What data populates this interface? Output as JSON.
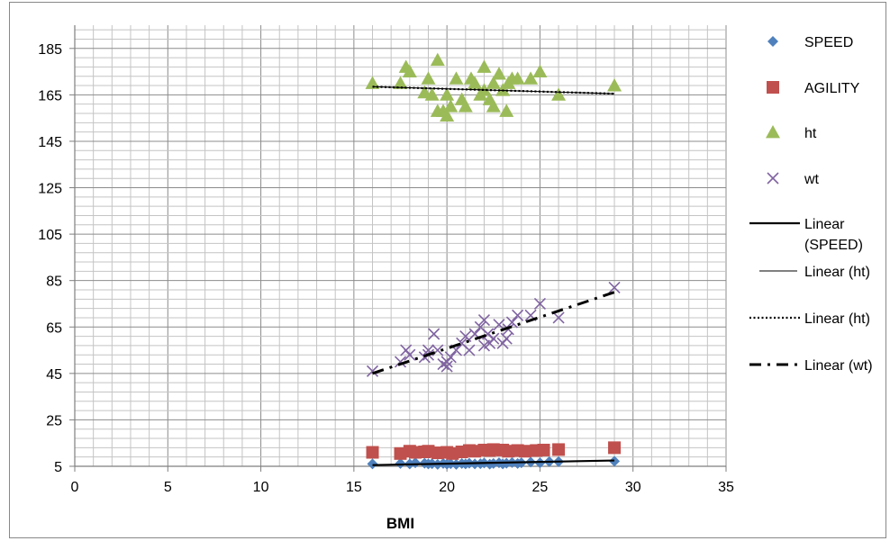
{
  "chart_data": {
    "type": "scatter",
    "title": "",
    "xlabel": "BMI",
    "ylabel": "",
    "xlim": [
      0,
      35
    ],
    "ylim": [
      5,
      195
    ],
    "x_ticks": [
      "0",
      "5",
      "10",
      "15",
      "20",
      "25",
      "30",
      "35"
    ],
    "y_ticks": [
      "5",
      "25",
      "45",
      "65",
      "85",
      "105",
      "125",
      "145",
      "165",
      "185"
    ],
    "grid": true,
    "legend_position": "right",
    "series": [
      {
        "name": "SPEED",
        "marker": "diamond",
        "color": "#4F81BD",
        "points": [
          [
            16,
            6
          ],
          [
            17.5,
            6.2
          ],
          [
            18,
            6
          ],
          [
            18.3,
            6.5
          ],
          [
            18.8,
            6.3
          ],
          [
            19,
            6
          ],
          [
            19.2,
            6.1
          ],
          [
            19.5,
            5.8
          ],
          [
            19.8,
            6.2
          ],
          [
            20,
            5.9
          ],
          [
            20.2,
            6.1
          ],
          [
            20.5,
            5.8
          ],
          [
            20.8,
            6.2
          ],
          [
            21,
            6
          ],
          [
            21.2,
            6.3
          ],
          [
            21.5,
            6
          ],
          [
            21.8,
            6.1
          ],
          [
            22,
            6.4
          ],
          [
            22.3,
            5.9
          ],
          [
            22.5,
            6.2
          ],
          [
            22.8,
            6.5
          ],
          [
            23,
            6
          ],
          [
            23.2,
            6.3
          ],
          [
            23.5,
            6.6
          ],
          [
            23.8,
            6.2
          ],
          [
            24,
            6.5
          ],
          [
            24.5,
            6.8
          ],
          [
            25,
            6.5
          ],
          [
            25.5,
            7
          ],
          [
            26,
            7
          ],
          [
            29,
            7.2
          ]
        ]
      },
      {
        "name": "AGILITY",
        "marker": "square",
        "color": "#C0504D",
        "points": [
          [
            16,
            11
          ],
          [
            17.5,
            10.5
          ],
          [
            18,
            11.5
          ],
          [
            18.3,
            11
          ],
          [
            18.8,
            11.2
          ],
          [
            19,
            11.5
          ],
          [
            19.5,
            10.8
          ],
          [
            20,
            11
          ],
          [
            20.3,
            10.5
          ],
          [
            20.8,
            11.2
          ],
          [
            21.2,
            11.8
          ],
          [
            21.5,
            11.5
          ],
          [
            22,
            12
          ],
          [
            22.3,
            11.8
          ],
          [
            22.5,
            12.2
          ],
          [
            23,
            12
          ],
          [
            23.3,
            11.5
          ],
          [
            23.8,
            11.8
          ],
          [
            24.2,
            11.5
          ],
          [
            24.8,
            11.8
          ],
          [
            25.2,
            12
          ],
          [
            26,
            12.2
          ],
          [
            29,
            13
          ]
        ]
      },
      {
        "name": "ht",
        "marker": "triangle",
        "color": "#9BBB59",
        "points": [
          [
            16,
            170
          ],
          [
            17.5,
            170
          ],
          [
            17.8,
            177
          ],
          [
            18,
            175
          ],
          [
            18.8,
            166
          ],
          [
            19,
            172
          ],
          [
            19.2,
            165
          ],
          [
            19.5,
            180
          ],
          [
            19.5,
            158
          ],
          [
            19.8,
            158
          ],
          [
            20,
            165
          ],
          [
            20,
            156
          ],
          [
            20.2,
            160
          ],
          [
            20.5,
            172
          ],
          [
            20.8,
            163
          ],
          [
            21,
            160
          ],
          [
            21.3,
            172
          ],
          [
            21.5,
            170
          ],
          [
            21.8,
            165
          ],
          [
            22,
            177
          ],
          [
            22,
            167
          ],
          [
            22.3,
            163
          ],
          [
            22.5,
            160
          ],
          [
            22.5,
            170
          ],
          [
            22.8,
            174
          ],
          [
            23,
            167
          ],
          [
            23.2,
            158
          ],
          [
            23.3,
            170
          ],
          [
            23.5,
            172
          ],
          [
            23.8,
            172
          ],
          [
            24.5,
            172
          ],
          [
            25,
            175
          ],
          [
            26,
            165
          ],
          [
            29,
            169
          ]
        ]
      },
      {
        "name": "wt",
        "marker": "x",
        "color": "#8064A2",
        "points": [
          [
            16,
            46
          ],
          [
            17.5,
            50
          ],
          [
            17.8,
            55
          ],
          [
            18,
            53
          ],
          [
            18.8,
            52
          ],
          [
            19,
            55
          ],
          [
            19,
            53
          ],
          [
            19.3,
            62
          ],
          [
            19.5,
            55
          ],
          [
            19.8,
            49
          ],
          [
            20,
            50
          ],
          [
            20,
            48
          ],
          [
            20.2,
            52
          ],
          [
            20.5,
            55
          ],
          [
            20.8,
            58
          ],
          [
            21,
            61
          ],
          [
            21.2,
            55
          ],
          [
            21.5,
            62
          ],
          [
            21.8,
            65
          ],
          [
            22,
            68
          ],
          [
            22,
            57
          ],
          [
            22.2,
            62
          ],
          [
            22.3,
            58
          ],
          [
            22.5,
            60
          ],
          [
            22.8,
            66
          ],
          [
            23,
            58
          ],
          [
            23.2,
            60
          ],
          [
            23.3,
            64
          ],
          [
            23.5,
            67
          ],
          [
            23.8,
            70
          ],
          [
            24.5,
            70
          ],
          [
            25,
            75
          ],
          [
            26,
            69
          ],
          [
            29,
            82
          ]
        ]
      }
    ],
    "trendlines": [
      {
        "name": "Linear (SPEED)",
        "style": "solid-thick",
        "color": "#000000",
        "x": [
          16,
          29
        ],
        "y": [
          5.5,
          7.5
        ]
      },
      {
        "name": "Linear (ht)",
        "style": "solid-thin",
        "color": "#000000",
        "x": [
          16,
          29
        ],
        "y": [
          168.5,
          165.5
        ]
      },
      {
        "name": "Linear (ht)",
        "style": "dotted",
        "color": "#000000",
        "x": [
          16,
          29
        ],
        "y": [
          168.5,
          165.5
        ]
      },
      {
        "name": "Linear (wt)",
        "style": "dash-dot",
        "color": "#000000",
        "x": [
          16,
          29
        ],
        "y": [
          45,
          80
        ]
      }
    ],
    "legend": [
      {
        "label": "SPEED",
        "kind": "marker",
        "marker": "diamond",
        "color": "#4F81BD"
      },
      {
        "label": "AGILITY",
        "kind": "marker",
        "marker": "square",
        "color": "#C0504D"
      },
      {
        "label": "ht",
        "kind": "marker",
        "marker": "triangle",
        "color": "#9BBB59"
      },
      {
        "label": "wt",
        "kind": "marker",
        "marker": "x",
        "color": "#8064A2"
      },
      {
        "label": "Linear",
        "label2": "(SPEED)",
        "kind": "line",
        "style": "solid-thick"
      },
      {
        "label": "Linear (ht)",
        "kind": "line",
        "style": "solid-thin"
      },
      {
        "label": "Linear (ht)",
        "kind": "line",
        "style": "dotted"
      },
      {
        "label": "Linear (wt)",
        "kind": "line",
        "style": "dash-dot"
      }
    ]
  }
}
